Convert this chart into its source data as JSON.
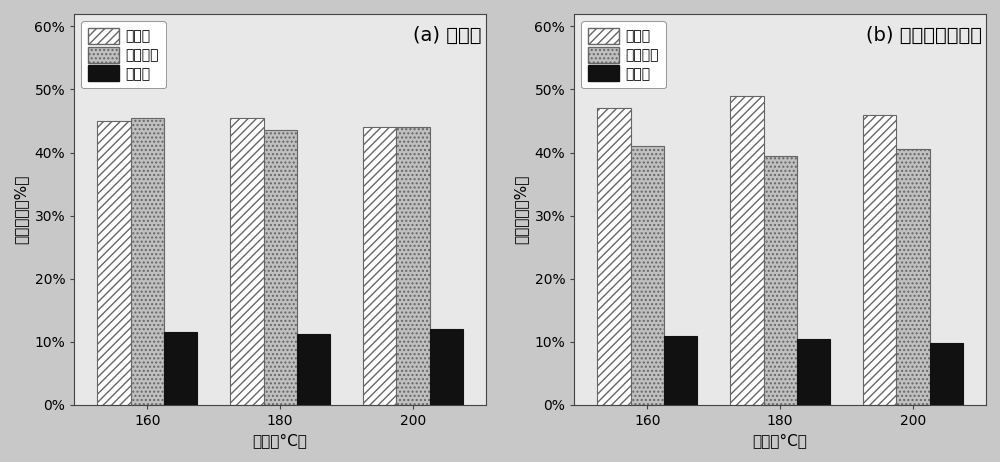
{
  "chart_a": {
    "title": "(a) 水热法",
    "temperatures": [
      160,
      180,
      200
    ],
    "cellulose": [
      0.45,
      0.455,
      0.44
    ],
    "hemicellulose": [
      0.455,
      0.435,
      0.44
    ],
    "lignin": [
      0.115,
      0.112,
      0.12
    ]
  },
  "chart_b": {
    "title": "(b) 细菌强化水热法",
    "temperatures": [
      160,
      180,
      200
    ],
    "cellulose": [
      0.47,
      0.49,
      0.46
    ],
    "hemicellulose": [
      0.41,
      0.395,
      0.405
    ],
    "lignin": [
      0.108,
      0.104,
      0.098
    ]
  },
  "legend_labels": [
    "纤维素",
    "半纤维素",
    "木质素"
  ],
  "ylabel": "组成比例（%）",
  "xlabel": "温度（°C）",
  "ylim": [
    0,
    0.62
  ],
  "yticks": [
    0.0,
    0.1,
    0.2,
    0.3,
    0.4,
    0.5,
    0.6
  ],
  "bar_width": 0.25,
  "cellulose_color": "white",
  "cellulose_hatch": "////",
  "cellulose_edgecolor": "#666666",
  "hemicellulose_color": "#c0c0c0",
  "hemicellulose_hatch": "....",
  "hemicellulose_edgecolor": "#666666",
  "lignin_color": "#111111",
  "lignin_hatch": "",
  "lignin_edgecolor": "#111111",
  "outer_bg": "#c8c8c8",
  "plot_bg": "#e8e8e8",
  "title_fontsize": 14,
  "axis_fontsize": 11,
  "tick_fontsize": 10,
  "legend_fontsize": 10
}
